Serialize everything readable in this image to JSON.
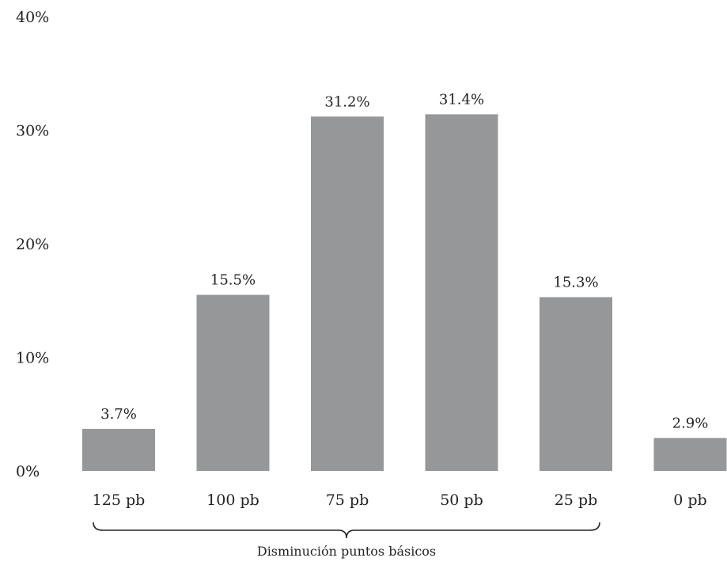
{
  "chart_data": {
    "type": "bar",
    "categories": [
      "125 pb",
      "100 pb",
      "75 pb",
      "50 pb",
      "25 pb",
      "0 pb"
    ],
    "values": [
      3.7,
      15.5,
      31.2,
      31.4,
      15.3,
      2.9
    ],
    "data_labels": [
      "3.7%",
      "15.5%",
      "31.2%",
      "31.4%",
      "15.3%",
      "2.9%"
    ],
    "yticks": [
      0,
      10,
      20,
      30,
      40
    ],
    "ytick_labels": [
      "0%",
      "10%",
      "20%",
      "30%",
      "40%"
    ],
    "ylim": [
      0,
      40
    ],
    "xlabel": "Disminución puntos básicos",
    "ylabel": "",
    "grid": false,
    "bar_color": "#959798"
  }
}
